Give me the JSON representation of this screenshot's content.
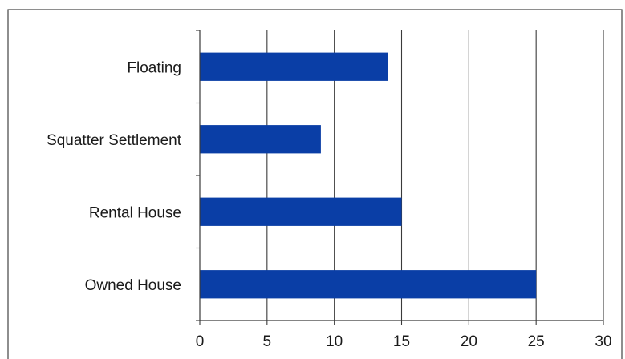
{
  "chart_data": {
    "type": "bar",
    "orientation": "horizontal",
    "title": "",
    "xlabel": "",
    "ylabel": "",
    "categories": [
      "Floating",
      "Squatter Settlement",
      "Rental House",
      "Owned House"
    ],
    "values": [
      14,
      9,
      15,
      25
    ],
    "xlim": [
      0,
      30
    ],
    "xticks": [
      0,
      5,
      10,
      15,
      20,
      25,
      30
    ],
    "grid": "vertical",
    "legend": "none",
    "bar_color": "#0a3ea6"
  }
}
